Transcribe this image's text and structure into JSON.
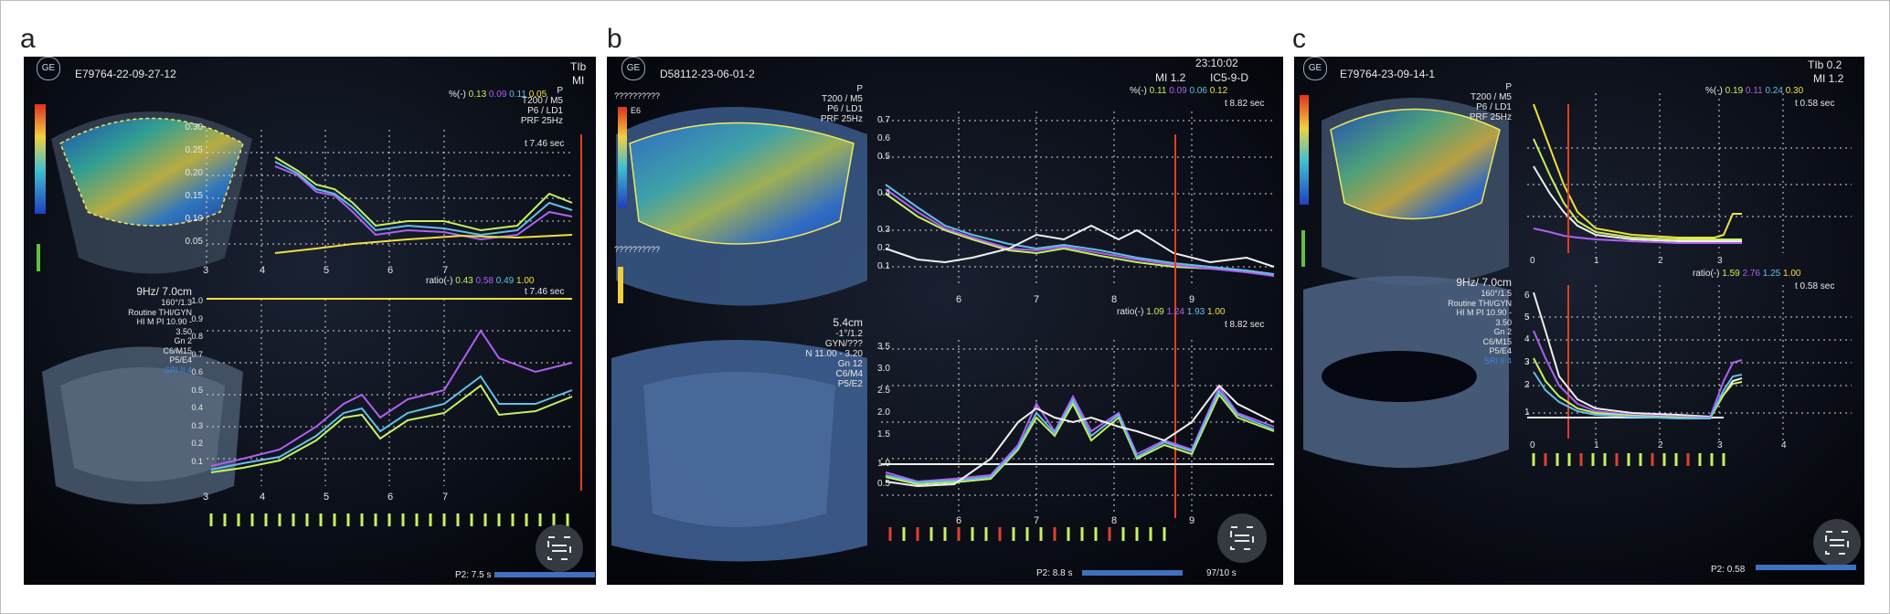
{
  "panels": [
    {
      "letter": "a",
      "patient_id": "E79764-22-09-27-12",
      "header_right": "TIb",
      "header_right2": "MI",
      "brand": "GE",
      "settings_top": [
        "P",
        "T200 / M5",
        "P6 / LD1",
        "PRF 25Hz"
      ],
      "pct_label": "%(-)",
      "pct_values": [
        "0.13",
        "0.09",
        "0.11",
        "0.05"
      ],
      "time_label": "t 7.46 sec",
      "ratio_label": "ratio(-)",
      "ratio_values": [
        "0.43",
        "0.58",
        "0.49",
        "1.00"
      ],
      "time_label2": "t 7.46 sec",
      "settings_mid": [
        "9Hz/ 7.0cm",
        "160°/1.3",
        "Routine THI/GYN",
        "HI M PI 10.90 -",
        "3.50",
        "Gn  2",
        "C6/M15",
        "P5/E4",
        "SRI II 4"
      ],
      "top_yticks": [
        "0.30",
        "0.25",
        "0.20",
        "0.15",
        "0.10",
        "0.05"
      ],
      "top_xticks": [
        "3",
        "4",
        "5",
        "6",
        "7"
      ],
      "bot_yticks": [
        "1.0",
        "0.9",
        "0.8",
        "0.7",
        "0.6",
        "0.5",
        "0.4",
        "0.3",
        "0.2",
        "0.1"
      ],
      "bot_xticks": [
        "3",
        "4",
        "5",
        "6",
        "7"
      ],
      "footer": "P2: 7.5 s"
    },
    {
      "letter": "b",
      "patient_id": "D58112-23-06-01-2",
      "header_right": "23:10:02",
      "header_right2": "MI  1.2",
      "header_right3": "IC5-9-D",
      "brand": "GE",
      "placeholder_top": "??????????",
      "placeholder_mid": "??????????",
      "scale_label": "E6",
      "settings_top": [
        "P",
        "T200 / M5",
        "P6 / LD1",
        "PRF 25Hz"
      ],
      "pct_label": "%(-)",
      "pct_values": [
        "0.11",
        "0.09",
        "0.06",
        "0.12"
      ],
      "time_label": "t 8.82 sec",
      "ratio_label": "ratio(-)",
      "ratio_values": [
        "1.09",
        "1.24",
        "1.93",
        "1.00"
      ],
      "time_label2": "t 8.82 sec",
      "settings_mid": [
        "5.4cm",
        "-1°/1.2",
        "GYN/???",
        "N 11.00 - 3.20",
        "Gn 12",
        "C6/M4",
        "P5/E2"
      ],
      "top_yticks": [
        "0.7",
        "0.6",
        "0.5",
        "0.4",
        "0.3",
        "0.2",
        "0.1"
      ],
      "top_xticks": [
        "6",
        "7",
        "8",
        "9"
      ],
      "bot_yticks": [
        "3.5",
        "3.0",
        "2.5",
        "2.0",
        "1.5",
        "1.0",
        "0.5"
      ],
      "bot_xticks": [
        "6",
        "7",
        "8",
        "9"
      ],
      "footer": "P2: 8.8 s",
      "footer_right": "97/10 s"
    },
    {
      "letter": "c",
      "patient_id": "E79764-23-09-14-1",
      "header_right": "TIb  0.2",
      "header_right2": "MI  1.2",
      "brand": "GE",
      "settings_top": [
        "P",
        "T200 / M5",
        "P6 / LD1",
        "PRF 25Hz"
      ],
      "pct_label": "%(-)",
      "pct_values": [
        "0.19",
        "0.11",
        "0.24",
        "0.30"
      ],
      "time_label": "t 0.58 sec",
      "ratio_label": "ratio(-)",
      "ratio_values": [
        "1.59",
        "2.76",
        "1.25",
        "1.00"
      ],
      "time_label2": "t 0.58 sec",
      "settings_mid": [
        "9Hz/ 7.0cm",
        "160°/1.5",
        "Routine THI/GYN",
        "HI M PI 10.90 -",
        "3.50",
        "Gn  2",
        "C6/M15",
        "P5/E4",
        "SRI II 4"
      ],
      "top_xticks": [
        "0",
        "1",
        "2",
        "3"
      ],
      "bot_yticks": [
        "6",
        "5",
        "4",
        "3",
        "2",
        "1"
      ],
      "bot_xticks": [
        "0",
        "1",
        "2",
        "3",
        "4"
      ],
      "footer": "P2: 0.58"
    }
  ],
  "series_colors": [
    "#c8f060",
    "#b060f0",
    "#60c0e8",
    "#f0e040"
  ]
}
